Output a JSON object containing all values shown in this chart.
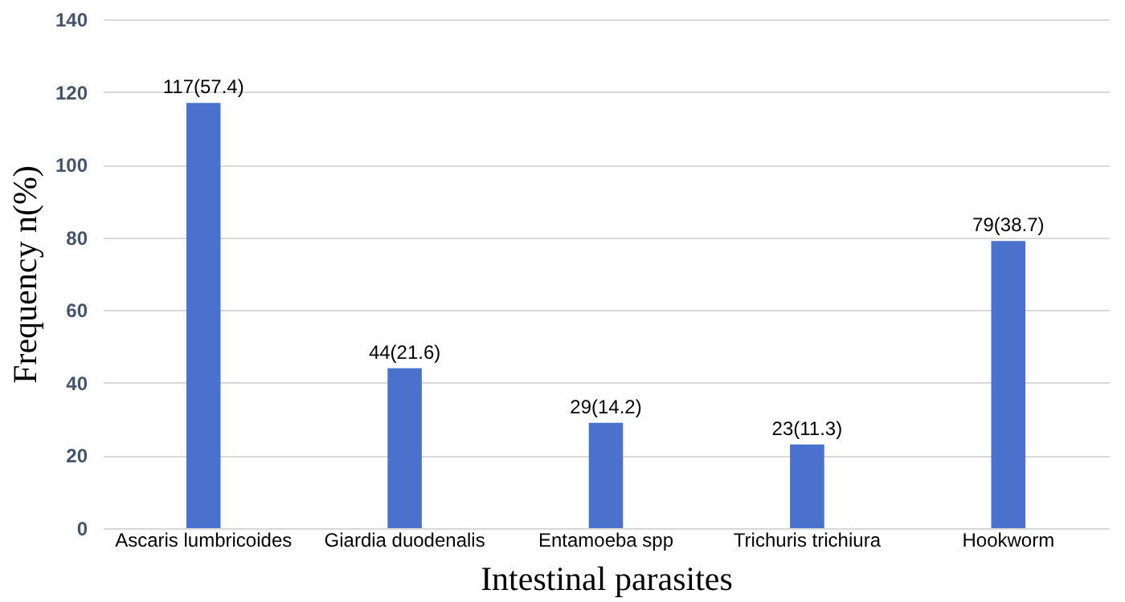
{
  "chart_data": {
    "type": "bar",
    "xlabel": "Intestinal parasites",
    "ylabel": "Frequency n(%)",
    "categories": [
      "Ascaris lumbricoides",
      "Giardia duodenalis",
      "Entamoeba spp",
      "Trichuris trichiura",
      "Hookworm"
    ],
    "values": [
      117,
      44,
      29,
      23,
      79
    ],
    "value_labels": [
      "117(57.4)",
      "44(21.6)",
      "29(14.2)",
      "23(11.3)",
      "79(38.7)"
    ],
    "color": "#4a72cc",
    "ylim": [
      0,
      140
    ],
    "yticks": [
      0,
      20,
      40,
      60,
      80,
      100,
      120,
      140
    ],
    "grid": "y"
  }
}
